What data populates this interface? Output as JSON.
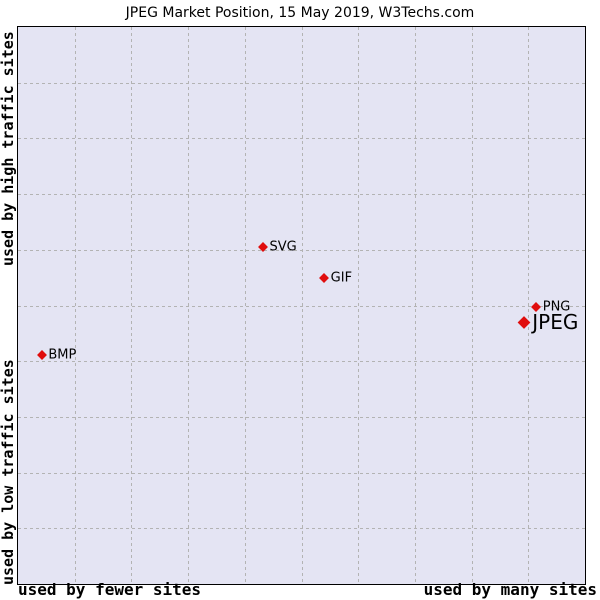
{
  "chart_data": {
    "type": "scatter",
    "title": "JPEG Market Position, 15 May 2019, W3Techs.com",
    "xlabel_left": "used by fewer sites",
    "xlabel_right": "used by many sites",
    "ylabel_top": "used by high traffic sites",
    "ylabel_bottom": "used by low traffic sites",
    "xlim": [
      0,
      1
    ],
    "ylim": [
      0,
      1
    ],
    "grid": {
      "columns": 10,
      "rows": 10,
      "style": "dashed"
    },
    "legend_position": "none",
    "marker": {
      "shape": "diamond",
      "color": "#e00d0d"
    },
    "points": [
      {
        "label": "BMP",
        "x": 0.042,
        "y": 0.411,
        "emphasis": false
      },
      {
        "label": "SVG",
        "x": 0.432,
        "y": 0.605,
        "emphasis": false
      },
      {
        "label": "GIF",
        "x": 0.54,
        "y": 0.549,
        "emphasis": false
      },
      {
        "label": "PNG",
        "x": 0.914,
        "y": 0.497,
        "emphasis": false
      },
      {
        "label": "JPEG",
        "x": 0.892,
        "y": 0.47,
        "emphasis": true
      }
    ]
  },
  "colors": {
    "plot_bg": "#e4e4f3",
    "grid": "#b3b3b3",
    "border": "#000000",
    "text": "#000000",
    "marker": "#e00d0d"
  }
}
